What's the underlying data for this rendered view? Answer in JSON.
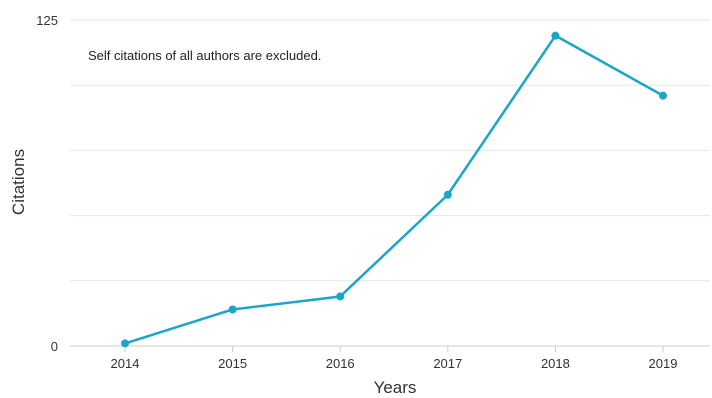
{
  "colors": {
    "series": "#1aa6c9",
    "grid": "#e6e6e6",
    "axis": "#cccccc"
  },
  "chart_data": {
    "type": "line",
    "title": "",
    "annotation": "Self citations of all authors are excluded.",
    "xlabel": "Years",
    "ylabel": "Citations",
    "categories": [
      "2014",
      "2015",
      "2016",
      "2017",
      "2018",
      "2019"
    ],
    "y_tick_labels": [
      "0",
      "125"
    ],
    "ylim": [
      0,
      125
    ],
    "grid": true,
    "series": [
      {
        "values": [
          1,
          14,
          19,
          58,
          119,
          96
        ]
      }
    ]
  }
}
